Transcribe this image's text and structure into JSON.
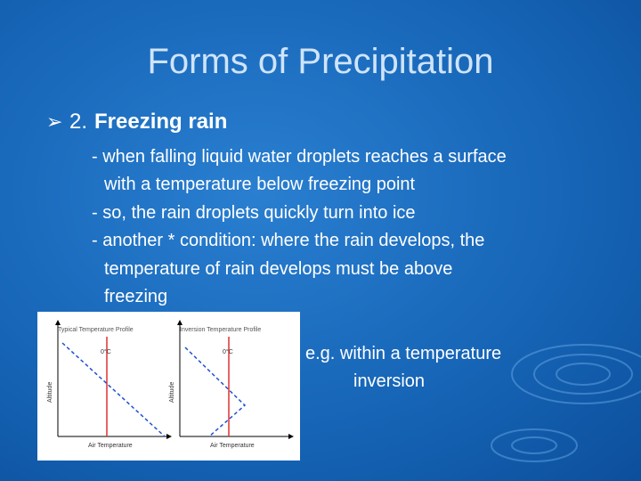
{
  "slide": {
    "title": "Forms of Precipitation",
    "heading": {
      "number": "2.",
      "label": "Freezing rain"
    },
    "body_lines": [
      "- when falling liquid water droplets reaches a surface",
      "with a temperature below freezing point",
      "- so, the rain droplets quickly turn into ice",
      "- another * condition: where the rain develops, the",
      "temperature of rain develops must be above",
      "freezing"
    ],
    "figure": {
      "panels": [
        {
          "title": "Typical Temperature Profile",
          "marker": "0°C",
          "y_label": "Altitude",
          "x_label": "Air Temperature"
        },
        {
          "title": "Inversion Temperature Profile",
          "marker": "0°C",
          "y_label": "Altitude",
          "x_label": "Air Temperature"
        }
      ]
    },
    "caption_lines": [
      "e.g. within a temperature",
      "inversion"
    ]
  }
}
